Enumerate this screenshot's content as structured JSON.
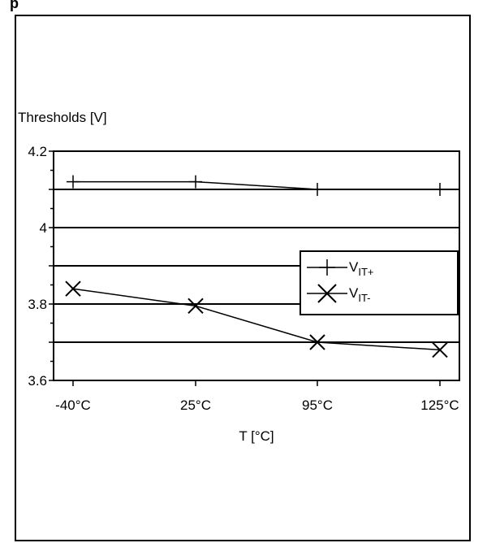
{
  "header": {
    "fragment": "p"
  },
  "chart_data": {
    "type": "line",
    "title": "",
    "ylabel": "Thresholds [V]",
    "xlabel": "T [°C]",
    "categories": [
      "-40°C",
      "25°C",
      "95°C",
      "125°C"
    ],
    "ylim": [
      3.6,
      4.2
    ],
    "yticks": [
      "4.2",
      "4",
      "3.8",
      "3.6"
    ],
    "grid": true,
    "legend_position": "right",
    "series": [
      {
        "name": "V",
        "sub": "IT+",
        "marker": "plus",
        "values": [
          4.12,
          4.12,
          4.1,
          4.1
        ]
      },
      {
        "name": "V",
        "sub": "IT-",
        "marker": "cross",
        "values": [
          3.84,
          3.795,
          3.7,
          3.68
        ]
      }
    ],
    "colors": {
      "line": "#000000",
      "background": "#ffffff"
    }
  }
}
